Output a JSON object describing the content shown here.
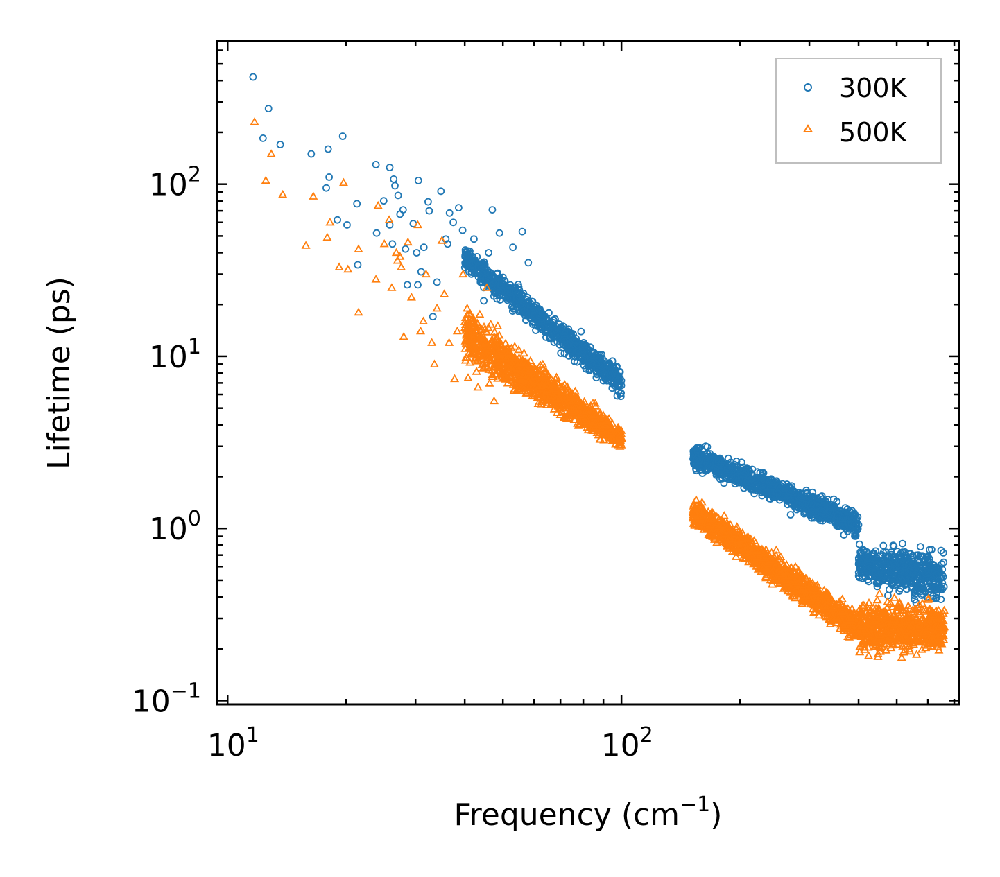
{
  "chart_data": {
    "type": "scatter",
    "xscale": "log",
    "yscale": "log",
    "xlabel": "Frequency (cm",
    "xlabel_sup": "−1",
    "xlabel_suffix": ")",
    "ylabel": "Lifetime (ps)",
    "xlim": [
      9.4,
      720
    ],
    "ylim": [
      0.095,
      680
    ],
    "x_ticks": [
      {
        "value": 10,
        "base": "10",
        "exp": "1"
      },
      {
        "value": 100,
        "base": "10",
        "exp": "2"
      }
    ],
    "y_ticks": [
      {
        "value": 0.1,
        "base": "10",
        "exp": "−1"
      },
      {
        "value": 1,
        "base": "10",
        "exp": "0"
      },
      {
        "value": 10,
        "base": "10",
        "exp": "1"
      },
      {
        "value": 100,
        "base": "10",
        "exp": "2"
      }
    ],
    "legend_position": "top-right",
    "series": [
      {
        "name": "300K",
        "color": "#1f77b4",
        "marker": "circle",
        "sparse_points": [
          [
            11.6,
            420
          ],
          [
            12.3,
            185
          ],
          [
            12.7,
            275
          ],
          [
            13.6,
            170
          ],
          [
            16.3,
            150
          ],
          [
            17.8,
            95
          ],
          [
            18.0,
            160
          ],
          [
            18.1,
            110
          ],
          [
            19.0,
            62
          ],
          [
            19.6,
            190
          ],
          [
            20.1,
            58
          ],
          [
            21.3,
            77
          ],
          [
            21.4,
            34
          ],
          [
            23.8,
            130
          ],
          [
            23.9,
            52
          ],
          [
            24.9,
            80
          ],
          [
            25.8,
            125
          ],
          [
            25.8,
            58
          ],
          [
            26.2,
            45
          ],
          [
            26.4,
            107
          ],
          [
            26.6,
            98
          ],
          [
            27.1,
            86
          ],
          [
            27.4,
            67
          ],
          [
            27.9,
            71
          ],
          [
            28.3,
            42
          ],
          [
            28.6,
            26
          ],
          [
            29.6,
            59
          ],
          [
            30.2,
            40
          ],
          [
            30.4,
            26
          ],
          [
            30.5,
            105
          ],
          [
            31.0,
            31
          ],
          [
            31.5,
            43
          ],
          [
            32.3,
            79
          ],
          [
            32.5,
            70
          ],
          [
            33.2,
            17
          ],
          [
            34.0,
            27
          ],
          [
            34.8,
            91
          ],
          [
            35.8,
            48
          ],
          [
            36.2,
            45
          ],
          [
            36.6,
            68
          ],
          [
            37.4,
            60
          ],
          [
            38.6,
            73
          ],
          [
            39.5,
            54
          ],
          [
            40.4,
            40
          ],
          [
            42.2,
            48
          ],
          [
            43.0,
            13
          ],
          [
            44.7,
            21
          ],
          [
            46.0,
            40
          ],
          [
            47.0,
            71
          ],
          [
            49.0,
            52
          ],
          [
            53.0,
            43
          ],
          [
            56.0,
            53
          ],
          [
            58.0,
            35
          ]
        ],
        "dense_clusters": [
          {
            "x_range": [
              40,
              100
            ],
            "y_start": [
              45,
              30
            ],
            "y_end": [
              9,
              5.5
            ],
            "count": 900
          },
          {
            "x_range": [
              152,
              400
            ],
            "y_start": [
              3.2,
              2.2
            ],
            "y_end": [
              1.3,
              0.85
            ],
            "count": 1100
          },
          {
            "x_range": [
              400,
              660
            ],
            "y_start": [
              0.85,
              0.45
            ],
            "y_end": [
              0.9,
              0.3
            ],
            "count": 500
          }
        ]
      },
      {
        "name": "500K",
        "color": "#ff7f0e",
        "marker": "triangle",
        "sparse_points": [
          [
            11.7,
            230
          ],
          [
            12.5,
            105
          ],
          [
            12.9,
            150
          ],
          [
            13.8,
            87
          ],
          [
            15.8,
            44
          ],
          [
            16.5,
            85
          ],
          [
            17.9,
            49
          ],
          [
            18.2,
            60
          ],
          [
            19.2,
            33
          ],
          [
            19.7,
            102
          ],
          [
            20.2,
            32
          ],
          [
            21.5,
            42
          ],
          [
            21.5,
            18
          ],
          [
            23.8,
            28
          ],
          [
            24.1,
            75
          ],
          [
            25.0,
            45
          ],
          [
            25.7,
            62
          ],
          [
            26.1,
            25
          ],
          [
            26.8,
            40
          ],
          [
            27.0,
            36
          ],
          [
            27.4,
            38
          ],
          [
            27.6,
            33
          ],
          [
            28.0,
            13
          ],
          [
            28.7,
            46
          ],
          [
            29.3,
            22
          ],
          [
            30.4,
            58
          ],
          [
            30.9,
            14
          ],
          [
            31.4,
            16
          ],
          [
            31.9,
            30
          ],
          [
            33.0,
            12
          ],
          [
            33.5,
            9
          ],
          [
            34.0,
            19
          ],
          [
            35.0,
            47
          ],
          [
            35.5,
            23
          ],
          [
            36.5,
            12
          ],
          [
            37.7,
            7.4
          ],
          [
            38.3,
            14
          ],
          [
            39.6,
            30
          ],
          [
            40.8,
            7.5
          ],
          [
            41.8,
            11
          ],
          [
            43.2,
            6.6
          ],
          [
            45.5,
            25
          ],
          [
            47.5,
            5.5
          ],
          [
            48.5,
            15
          ]
        ],
        "dense_clusters": [
          {
            "x_range": [
              40,
              100
            ],
            "y_start": [
              22,
              8
            ],
            "y_end": [
              4,
              2.8
            ],
            "count": 1100
          },
          {
            "x_range": [
              152,
              400
            ],
            "y_start": [
              1.6,
              1.0
            ],
            "y_end": [
              0.35,
              0.2
            ],
            "count": 1200
          },
          {
            "x_range": [
              400,
              660
            ],
            "y_start": [
              0.45,
              0.16
            ],
            "y_end": [
              0.4,
              0.18
            ],
            "count": 600
          }
        ]
      }
    ]
  }
}
